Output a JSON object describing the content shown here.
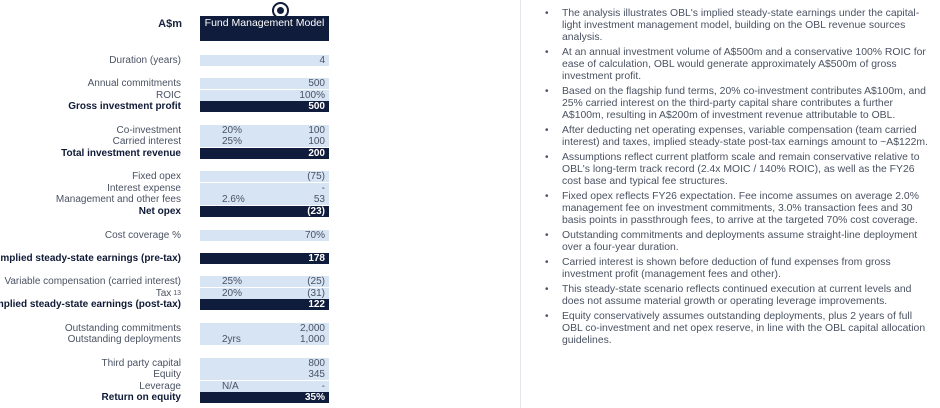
{
  "header": {
    "currency": "A$m",
    "column_title": "Fund Management Model"
  },
  "rows": [
    {
      "label": "Duration (years)",
      "mid": "",
      "value": "4",
      "bold": false
    },
    {
      "label": "Annual commitments",
      "mid": "",
      "value": "500",
      "bold": false
    },
    {
      "label": "ROIC",
      "mid": "",
      "value": "100%",
      "bold": false
    },
    {
      "label": "Gross investment profit",
      "mid": "",
      "value": "500",
      "bold": true
    },
    {
      "label": "Co-investment",
      "mid": "20%",
      "value": "100",
      "bold": false
    },
    {
      "label": "Carried interest",
      "mid": "25%",
      "value": "100",
      "bold": false
    },
    {
      "label": "Total investment revenue",
      "mid": "",
      "value": "200",
      "bold": true
    },
    {
      "label": "Fixed opex",
      "mid": "",
      "value": "(75)",
      "bold": false
    },
    {
      "label": "Interest expense",
      "mid": "",
      "value": "-",
      "bold": false
    },
    {
      "label": "Management and other fees",
      "mid": "2.6%",
      "value": "53",
      "bold": false
    },
    {
      "label": "Net opex",
      "mid": "",
      "value": "(23)",
      "bold": true
    },
    {
      "label": "Cost coverage %",
      "mid": "",
      "value": "70%",
      "bold": false
    },
    {
      "label": "Implied steady-state earnings (pre-tax)",
      "mid": "",
      "value": "178",
      "bold": true
    },
    {
      "label": "Variable compensation (carried interest)",
      "mid": "25%",
      "value": "(25)",
      "bold": false
    },
    {
      "label": "Tax",
      "footnote": "13",
      "mid": "20%",
      "value": "(31)",
      "bold": false
    },
    {
      "label": "Implied steady-state earnings (post-tax)",
      "mid": "",
      "value": "122",
      "bold": true
    },
    {
      "label": "Outstanding commitments",
      "mid": "",
      "value": "2,000",
      "bold": false
    },
    {
      "label": "Outstanding deployments",
      "mid": "2yrs",
      "value": "1,000",
      "bold": false
    },
    {
      "label": "Third party capital",
      "mid": "",
      "value": "800",
      "bold": false
    },
    {
      "label": "Equity",
      "mid": "",
      "value": "345",
      "bold": false
    },
    {
      "label": "Leverage",
      "mid": "N/A",
      "value": "-",
      "bold": false
    },
    {
      "label": "Return on equity",
      "mid": "",
      "value": "35%",
      "bold": true
    }
  ],
  "notes": [
    "The analysis illustrates OBL's implied steady-state earnings under the capital-light investment management model, building on the OBL revenue sources analysis.",
    "At an annual investment volume of A$500m and a conservative 100% ROIC for ease of calculation, OBL would generate approximately A$500m of gross investment profit.",
    "Based on the flagship fund terms, 20% co-investment contributes A$100m, and 25% carried interest on the third-party capital share contributes a further A$100m, resulting in A$200m of investment revenue attributable to OBL.",
    "After deducting net operating expenses, variable compensation (team carried interest) and taxes, implied steady-state post-tax earnings amount to ~A$122m.",
    "Assumptions reflect current platform scale and remain conservative relative to OBL's long-term track record (2.4x MOIC / 140% ROIC), as well as the FY26 cost base and typical fee structures.",
    "Fixed opex reflects FY26 expectation. Fee income assumes on average 2.0% management fee on investment commitments, 3.0% transaction fees and 30 basis points in passthrough fees, to arrive at the targeted 70% cost coverage.",
    "Outstanding commitments and deployments assume straight-line deployment over a four-year duration.",
    "Carried interest is shown before deduction of fund expenses from gross investment profit (management fees and other).",
    "This steady-state scenario reflects continued execution at current levels and does not assume material growth or operating leverage improvements.",
    "Equity conservatively assumes outstanding deployments, plus 2 years of full OBL co-investment and net opex reserve, in line with the OBL capital allocation guidelines."
  ],
  "bullet_char": "•"
}
